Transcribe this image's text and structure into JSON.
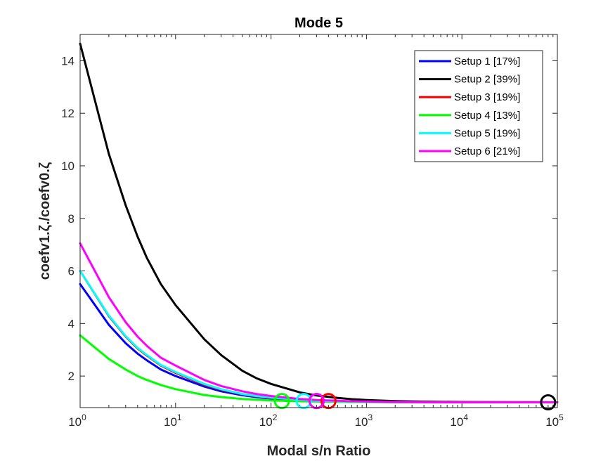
{
  "chart_data": {
    "type": "line",
    "title": "Mode 5",
    "xlabel": "Modal s/n Ratio",
    "ylabel": "coefv1.ζ./coefv0.ζ",
    "xscale": "log",
    "xlim": [
      1,
      100000
    ],
    "ylim": [
      0.8,
      15
    ],
    "x_ticks": [
      1,
      10,
      100,
      1000,
      10000,
      100000
    ],
    "x_tick_labels": [
      {
        "base": "10",
        "exp": "0"
      },
      {
        "base": "10",
        "exp": "1"
      },
      {
        "base": "10",
        "exp": "2"
      },
      {
        "base": "10",
        "exp": "3"
      },
      {
        "base": "10",
        "exp": "4"
      },
      {
        "base": "10",
        "exp": "5"
      }
    ],
    "y_ticks": [
      2,
      4,
      6,
      8,
      10,
      12,
      14
    ],
    "y_tick_labels": [
      "2",
      "4",
      "6",
      "8",
      "10",
      "12",
      "14"
    ],
    "grid": false,
    "legend_position": "top-right",
    "x": [
      1,
      2,
      3,
      4,
      5,
      7,
      10,
      20,
      30,
      50,
      70,
      100,
      200,
      300,
      500,
      700,
      1000,
      2000,
      5000,
      10000,
      100000
    ],
    "series": [
      {
        "name": "Setup 1 [17%]",
        "color": "#0000ff",
        "values": [
          5.5,
          3.95,
          3.25,
          2.85,
          2.6,
          2.25,
          2.0,
          1.6,
          1.42,
          1.27,
          1.2,
          1.14,
          1.08,
          1.05,
          1.03,
          1.02,
          1.02,
          1.01,
          1.0,
          1.0,
          1.0
        ],
        "marker": {
          "x": 300,
          "y": 1.05
        }
      },
      {
        "name": "Setup 2 [39%]",
        "color": "#000000",
        "values": [
          14.65,
          10.45,
          8.5,
          7.3,
          6.5,
          5.5,
          4.7,
          3.4,
          2.8,
          2.2,
          1.92,
          1.7,
          1.38,
          1.26,
          1.17,
          1.12,
          1.09,
          1.05,
          1.02,
          1.01,
          1.0
        ],
        "marker": {
          "x": 80000,
          "y": 1.0
        }
      },
      {
        "name": "Setup 3 [19%]",
        "color": "#ff0000",
        "values": [
          6.0,
          4.28,
          3.5,
          3.05,
          2.78,
          2.4,
          2.12,
          1.67,
          1.48,
          1.31,
          1.23,
          1.17,
          1.09,
          1.06,
          1.04,
          1.03,
          1.02,
          1.01,
          1.0,
          1.0,
          1.0
        ],
        "marker": {
          "x": 400,
          "y": 1.05
        }
      },
      {
        "name": "Setup 4 [13%]",
        "color": "#00ff00",
        "values": [
          3.55,
          2.65,
          2.25,
          2.0,
          1.85,
          1.66,
          1.5,
          1.28,
          1.2,
          1.13,
          1.1,
          1.07,
          1.04,
          1.03,
          1.02,
          1.01,
          1.01,
          1.0,
          1.0,
          1.0,
          1.0
        ],
        "marker": {
          "x": 130,
          "y": 1.05
        }
      },
      {
        "name": "Setup 5 [19%]",
        "color": "#00ffff",
        "values": [
          6.0,
          4.3,
          3.52,
          3.07,
          2.8,
          2.42,
          2.15,
          1.7,
          1.5,
          1.32,
          1.24,
          1.18,
          1.1,
          1.06,
          1.04,
          1.03,
          1.02,
          1.01,
          1.0,
          1.0,
          1.0
        ],
        "marker": {
          "x": 220,
          "y": 1.05
        }
      },
      {
        "name": "Setup 6 [21%]",
        "color": "#ff00ff",
        "values": [
          7.05,
          5.0,
          4.05,
          3.5,
          3.15,
          2.7,
          2.4,
          1.85,
          1.62,
          1.42,
          1.32,
          1.24,
          1.13,
          1.09,
          1.06,
          1.04,
          1.03,
          1.01,
          1.0,
          1.0,
          1.0
        ],
        "marker": {
          "x": 300,
          "y": 1.05
        }
      }
    ]
  }
}
